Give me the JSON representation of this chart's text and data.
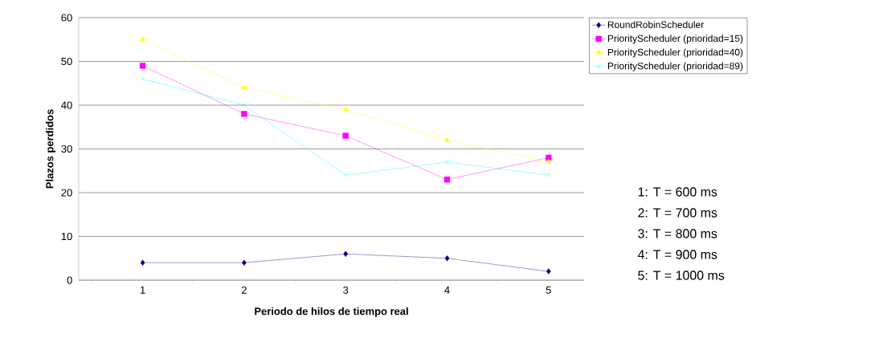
{
  "chart_data": {
    "type": "line",
    "xlabel": "Periodo de hilos de tiempo real",
    "ylabel": "Plazos perdidos",
    "categories": [
      "1",
      "2",
      "3",
      "4",
      "5"
    ],
    "series": [
      {
        "name": "RoundRobinScheduler",
        "color": "#000080",
        "marker": "diamond",
        "values": [
          4,
          4,
          6,
          5,
          2
        ]
      },
      {
        "name": "PriorityScheduler (prioridad=15)",
        "color": "#ff00ff",
        "marker": "square",
        "values": [
          49,
          38,
          33,
          23,
          28
        ]
      },
      {
        "name": "PriorityScheduler (prioridad=40)",
        "color": "#ffff00",
        "marker": "triangle",
        "values": [
          55,
          44,
          39,
          32,
          27
        ]
      },
      {
        "name": "PriorityScheduler (prioridad=89)",
        "color": "#00ffff",
        "marker": "cross",
        "values": [
          46,
          40,
          24,
          27,
          24
        ]
      }
    ],
    "ylim": [
      0,
      60
    ],
    "yticks": [
      0,
      10,
      20,
      30,
      40,
      50,
      60
    ],
    "grid": "y",
    "legend": "right",
    "line_style": "solid",
    "annotations": [
      "1: T = 600 ms",
      "2: T = 700 ms",
      "3: T = 800 ms",
      "4: T = 900 ms",
      "5: T = 1000 ms"
    ]
  }
}
